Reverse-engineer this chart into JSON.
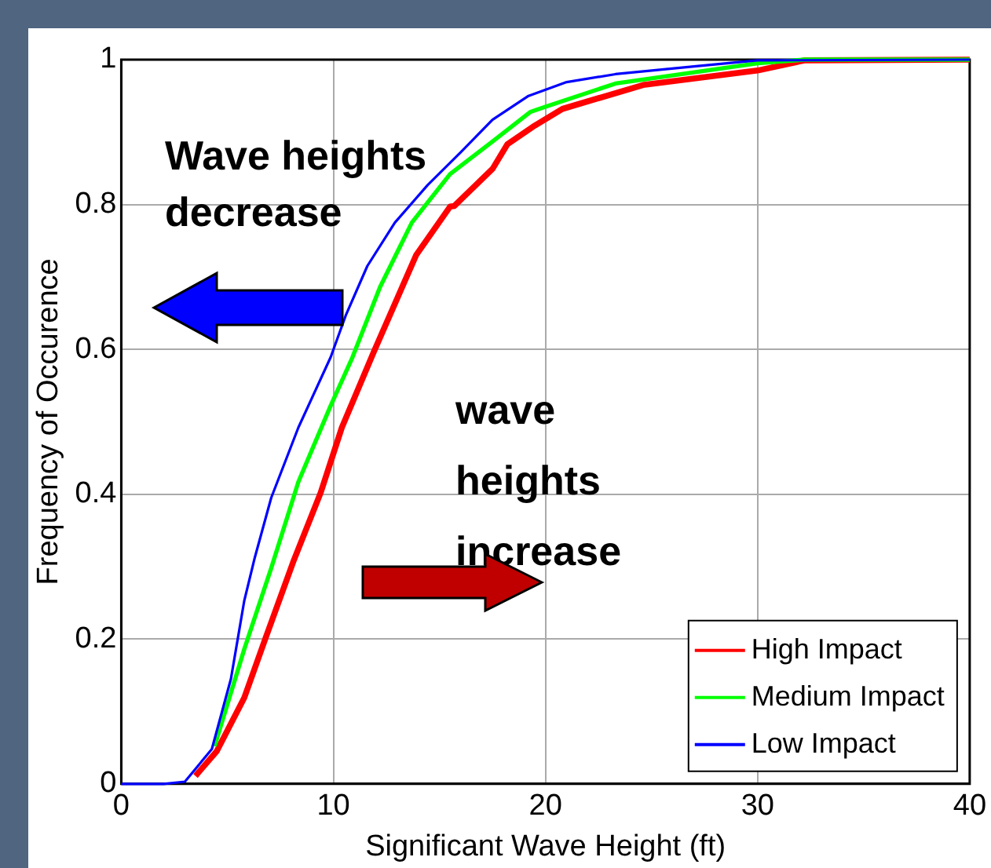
{
  "chart_data": {
    "type": "line",
    "xlabel": "Significant Wave Height (ft)",
    "ylabel": "Frequency of Occurence",
    "xlim": [
      0,
      40
    ],
    "xticks": [
      0,
      10,
      20,
      30,
      40
    ],
    "ylim": [
      0,
      1
    ],
    "yticks": [
      0,
      0.2,
      0.4,
      0.6,
      0.8,
      1
    ],
    "grid": true,
    "legend": "bottom right",
    "marker": "none",
    "line_style": "solid",
    "annotations": [
      "Wave heights decrease",
      "wave heights increase"
    ],
    "series": [
      {
        "name": "High Impact",
        "color": "#ff0000",
        "x": [
          3.5,
          4.5,
          5.8,
          6.8,
          8.1,
          9.4,
          10.4,
          11.9,
          13.9,
          15.5,
          15.7,
          17.5,
          18.2,
          19.5,
          20.8,
          24.6,
          30,
          32.2,
          40
        ],
        "values": [
          0.011,
          0.045,
          0.119,
          0.201,
          0.306,
          0.402,
          0.492,
          0.596,
          0.73,
          0.797,
          0.798,
          0.849,
          0.883,
          0.909,
          0.932,
          0.965,
          0.985,
          0.999,
          1
        ]
      },
      {
        "name": "Medium Impact",
        "color": "#00ff00",
        "x": [
          4.4,
          5.8,
          7.07,
          8.35,
          9.87,
          10.9,
          12.2,
          13.7,
          15.5,
          17.5,
          19.3,
          20,
          23.3,
          30,
          32.2,
          40
        ],
        "values": [
          0.052,
          0.186,
          0.298,
          0.417,
          0.522,
          0.589,
          0.686,
          0.775,
          0.842,
          0.887,
          0.928,
          0.935,
          0.967,
          0.995,
          1,
          1
        ]
      },
      {
        "name": "Low Impact",
        "color": "#0000ff",
        "x": [
          0,
          2,
          3,
          4.27,
          5.17,
          5.8,
          6.3,
          7.07,
          8.35,
          9.87,
          10.6,
          11.6,
          12.9,
          14.45,
          16,
          17.5,
          19.2,
          21,
          23.3,
          27.1,
          30,
          40
        ],
        "values": [
          0,
          0,
          0.003,
          0.048,
          0.145,
          0.253,
          0.313,
          0.395,
          0.492,
          0.589,
          0.648,
          0.715,
          0.775,
          0.827,
          0.872,
          0.917,
          0.95,
          0.969,
          0.98,
          0.991,
          0.999,
          1
        ]
      }
    ]
  }
}
